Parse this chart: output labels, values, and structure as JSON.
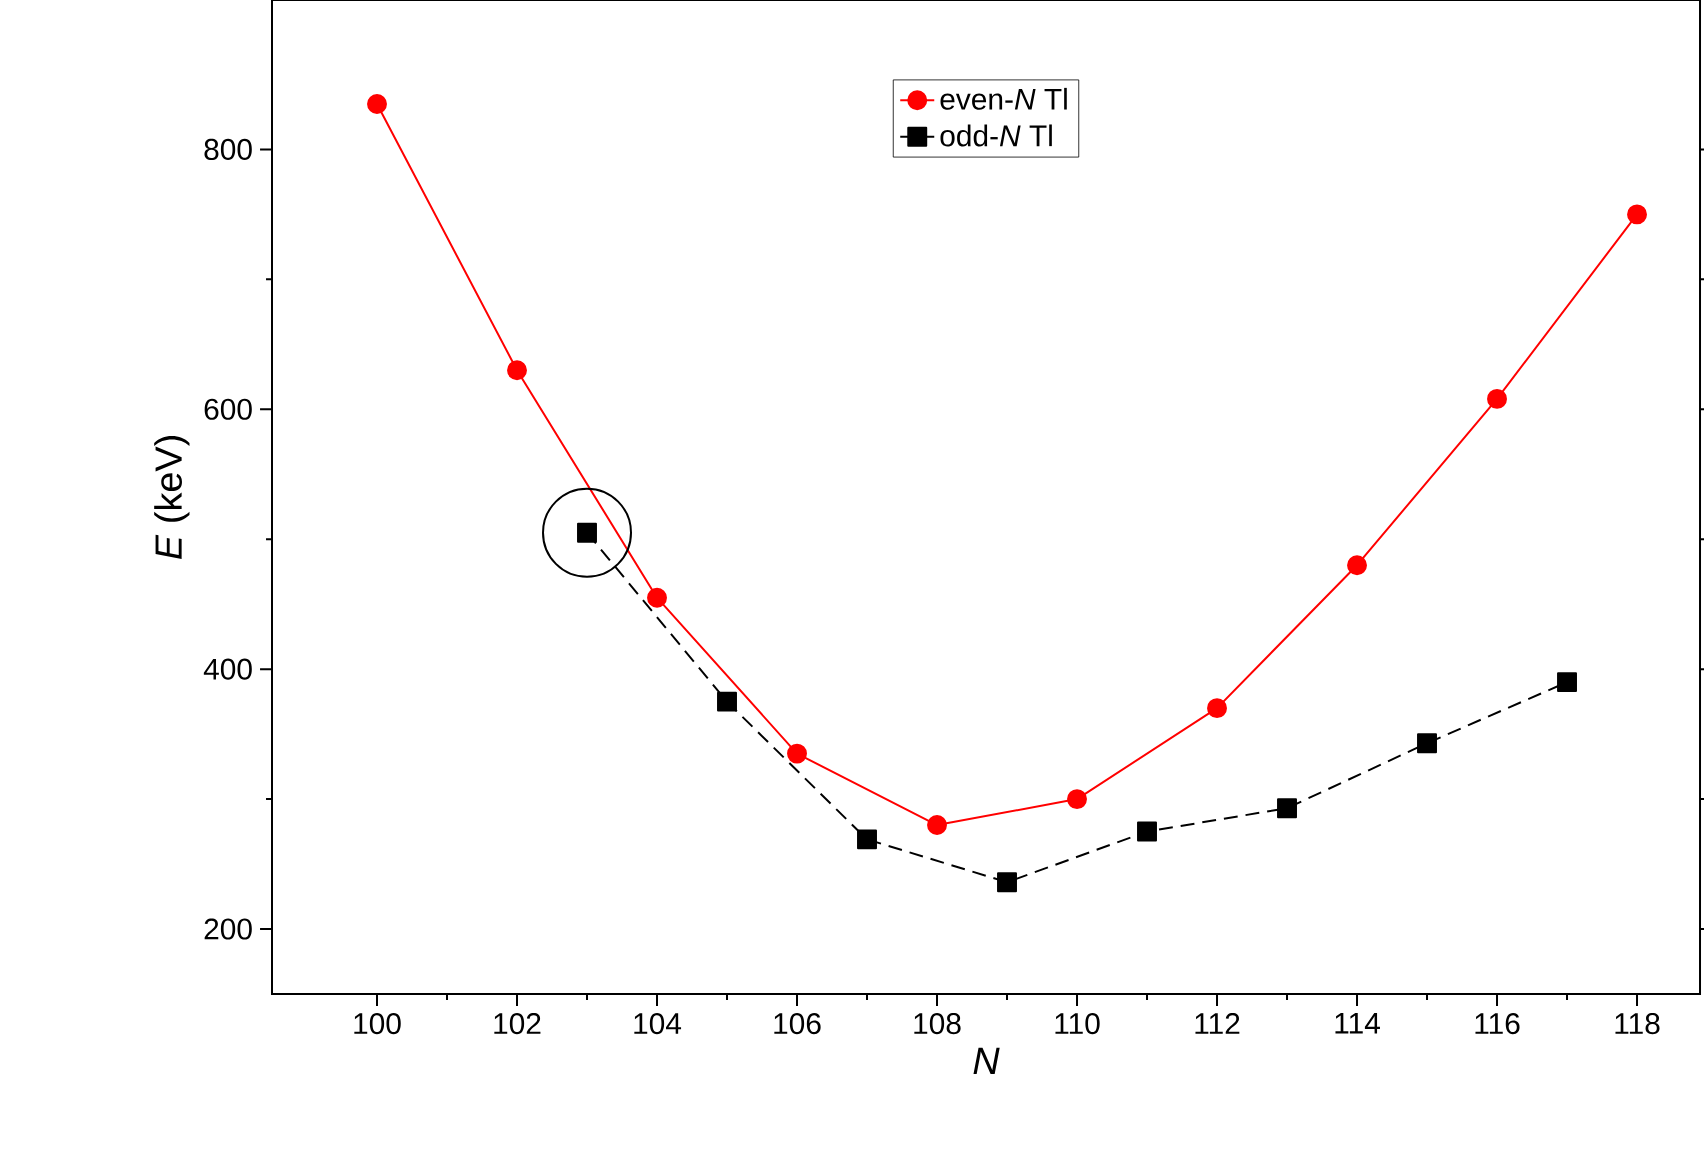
{
  "chart_data": {
    "type": "line",
    "xlabel": "N",
    "ylabel": "*E* (keV)",
    "xlim": [
      98.5,
      118.9
    ],
    "ylim": [
      150,
      915
    ],
    "xticks": [
      100,
      102,
      104,
      106,
      108,
      110,
      112,
      114,
      116,
      118
    ],
    "yticks": [
      200,
      400,
      600,
      800
    ],
    "legend": "top",
    "grid": false,
    "series": [
      {
        "name": "even-*N* Tl",
        "color": "#ff0000",
        "marker": "circle",
        "line_style": "solid",
        "x": [
          100,
          102,
          104,
          106,
          108,
          110,
          112,
          114,
          116,
          118
        ],
        "values": [
          835,
          630,
          455,
          335,
          280,
          300,
          370,
          480,
          608,
          750
        ]
      },
      {
        "name": "odd-*N* Tl",
        "color": "#000000",
        "marker": "square",
        "line_style": "dashed",
        "x": [
          103,
          105,
          107,
          109,
          111,
          113,
          115,
          117
        ],
        "values": [
          505,
          375,
          269,
          236,
          275,
          293,
          343,
          390
        ]
      }
    ]
  }
}
